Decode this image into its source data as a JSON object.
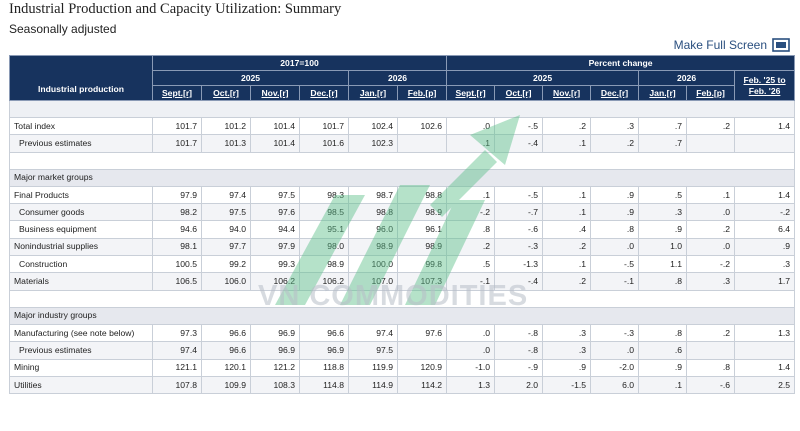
{
  "page": {
    "title": "Industrial Production and Capacity Utilization: Summary",
    "subtitle": "Seasonally adjusted",
    "full_screen_label": "Make Full Screen"
  },
  "table": {
    "row_header": "Industrial production",
    "group_index": "2017=100",
    "group_percent": "Percent change",
    "year_2025": "2025",
    "year_2026": "2026",
    "year_2025b": "2025",
    "year_2026b": "2026",
    "change_col_line1": "Feb. '25 to",
    "change_col_line2": "Feb. '26",
    "months_index": [
      "Sept.[r]",
      "Oct.[r]",
      "Nov.[r]",
      "Dec.[r]",
      "Jan.[r]",
      "Feb.[p]"
    ],
    "months_change": [
      "Sept.[r]",
      "Oct.[r]",
      "Nov.[r]",
      "Dec.[r]",
      "Jan.[r]",
      "Feb.[p]"
    ],
    "section_market": "Major market groups",
    "section_industry": "Major industry groups",
    "rows": {
      "total": {
        "label": "Total index",
        "v": [
          "101.7",
          "101.2",
          "101.4",
          "101.7",
          "102.4",
          "102.6",
          ".0",
          "-.5",
          ".2",
          ".3",
          ".7",
          ".2",
          "1.4"
        ]
      },
      "prev_total": {
        "label": "Previous estimates",
        "v": [
          "101.7",
          "101.3",
          "101.4",
          "101.6",
          "102.3",
          "",
          ".1",
          "-.4",
          ".1",
          ".2",
          ".7",
          "",
          ""
        ]
      },
      "final": {
        "label": "Final Products",
        "v": [
          "97.9",
          "97.4",
          "97.5",
          "98.3",
          "98.7",
          "98.8",
          ".1",
          "-.5",
          ".1",
          ".9",
          ".5",
          ".1",
          "1.4"
        ]
      },
      "consumer": {
        "label": "Consumer goods",
        "v": [
          "98.2",
          "97.5",
          "97.6",
          "98.5",
          "98.8",
          "98.9",
          "-.2",
          "-.7",
          ".1",
          ".9",
          ".3",
          ".0",
          "-.2"
        ]
      },
      "business": {
        "label": "Business equipment",
        "v": [
          "94.6",
          "94.0",
          "94.4",
          "95.1",
          "96.0",
          "96.1",
          ".8",
          "-.6",
          ".4",
          ".8",
          ".9",
          ".2",
          "6.4"
        ]
      },
      "nonind": {
        "label": "Nonindustrial supplies",
        "v": [
          "98.1",
          "97.7",
          "97.9",
          "98.0",
          "98.9",
          "98.9",
          ".2",
          "-.3",
          ".2",
          ".0",
          "1.0",
          ".0",
          ".9"
        ]
      },
      "construction": {
        "label": "Construction",
        "v": [
          "100.5",
          "99.2",
          "99.3",
          "98.9",
          "100.0",
          "99.8",
          ".5",
          "-1.3",
          ".1",
          "-.5",
          "1.1",
          "-.2",
          ".3"
        ]
      },
      "materials": {
        "label": "Materials",
        "v": [
          "106.5",
          "106.0",
          "106.2",
          "106.2",
          "107.0",
          "107.3",
          "-.1",
          "-.4",
          ".2",
          "-.1",
          ".8",
          ".3",
          "1.7"
        ]
      },
      "manufacturing": {
        "label": "Manufacturing (see note below)",
        "v": [
          "97.3",
          "96.6",
          "96.9",
          "96.6",
          "97.4",
          "97.6",
          ".0",
          "-.8",
          ".3",
          "-.3",
          ".8",
          ".2",
          "1.3"
        ]
      },
      "prev_manuf": {
        "label": "Previous estimates",
        "v": [
          "97.4",
          "96.6",
          "96.9",
          "96.9",
          "97.5",
          "",
          ".0",
          "-.8",
          ".3",
          ".0",
          ".6",
          "",
          ""
        ]
      },
      "mining": {
        "label": "Mining",
        "v": [
          "121.1",
          "120.1",
          "121.2",
          "118.8",
          "119.9",
          "120.9",
          "-1.0",
          "-.9",
          ".9",
          "-2.0",
          ".9",
          ".8",
          "1.4"
        ]
      },
      "utilities": {
        "label": "Utilities",
        "v": [
          "107.8",
          "109.9",
          "108.3",
          "114.8",
          "114.9",
          "114.2",
          "1.3",
          "2.0",
          "-1.5",
          "6.0",
          ".1",
          "-.6",
          "2.5"
        ]
      }
    }
  },
  "watermark": {
    "text": "VN COMMODITIES"
  },
  "colors": {
    "header_bg": "#17335e",
    "link": "#2a4f7f",
    "group_bg": "#e6e8ee",
    "watermark_green": "#5cc08a"
  }
}
